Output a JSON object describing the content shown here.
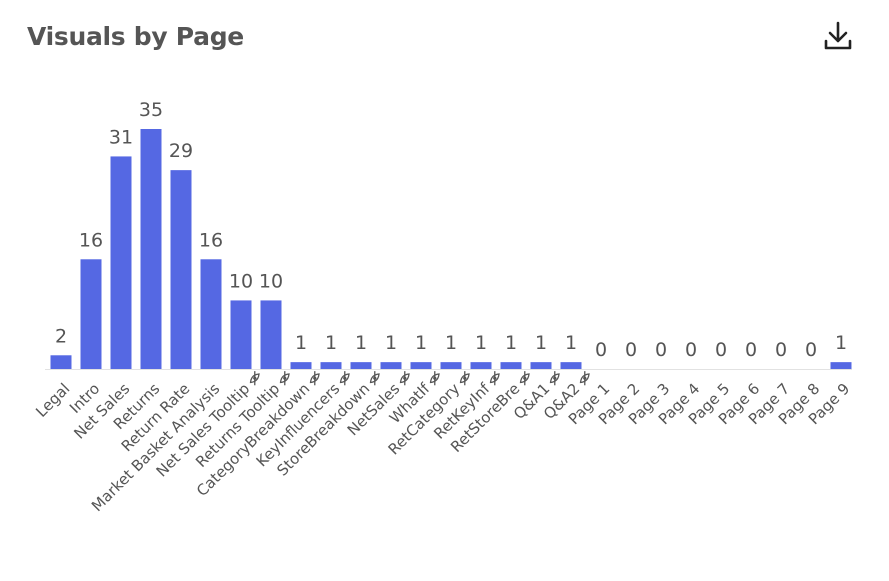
{
  "header": {
    "title": "Visuals by Page",
    "download_icon": "download-icon"
  },
  "colors": {
    "bar": "#5568e3",
    "text": "#555555",
    "axis": "#e2e2e2"
  },
  "chart_data": {
    "type": "bar",
    "title": "Visuals by Page",
    "xlabel": "",
    "ylabel": "",
    "ylim": [
      0,
      35
    ],
    "grid": false,
    "categories": [
      "Legal",
      "Intro",
      "Net Sales",
      "Returns",
      "Return Rate",
      "Market Basket Analysis",
      "Net Sales Tooltip",
      "Returns Tooltip",
      "CategoryBreakdown",
      "KeyInfluencers",
      "StoreBreakdown",
      "NetSales",
      "WhatIf",
      "RetCategory",
      "RetKeyInf",
      "RetStoreBre",
      "Q&A1",
      "Q&A2",
      "Page 1",
      "Page 2",
      "Page 3",
      "Page 4",
      "Page 5",
      "Page 6",
      "Page 7",
      "Page 8",
      "Page 9"
    ],
    "hidden_page_icon": [
      false,
      false,
      false,
      false,
      false,
      false,
      true,
      true,
      true,
      true,
      true,
      true,
      true,
      true,
      true,
      true,
      true,
      true,
      false,
      false,
      false,
      false,
      false,
      false,
      false,
      false,
      false
    ],
    "values": [
      2,
      16,
      31,
      35,
      29,
      16,
      10,
      10,
      1,
      1,
      1,
      1,
      1,
      1,
      1,
      1,
      1,
      1,
      0,
      0,
      0,
      0,
      0,
      0,
      0,
      0,
      1
    ],
    "data_labels": [
      "2",
      "16",
      "31",
      "35",
      "29",
      "16",
      "10",
      "10",
      "1",
      "1",
      "1",
      "1",
      "1",
      "1",
      "1",
      "1",
      "1",
      "1",
      "0",
      "0",
      "0",
      "0",
      "0",
      "0",
      "0",
      "0",
      "1"
    ]
  }
}
